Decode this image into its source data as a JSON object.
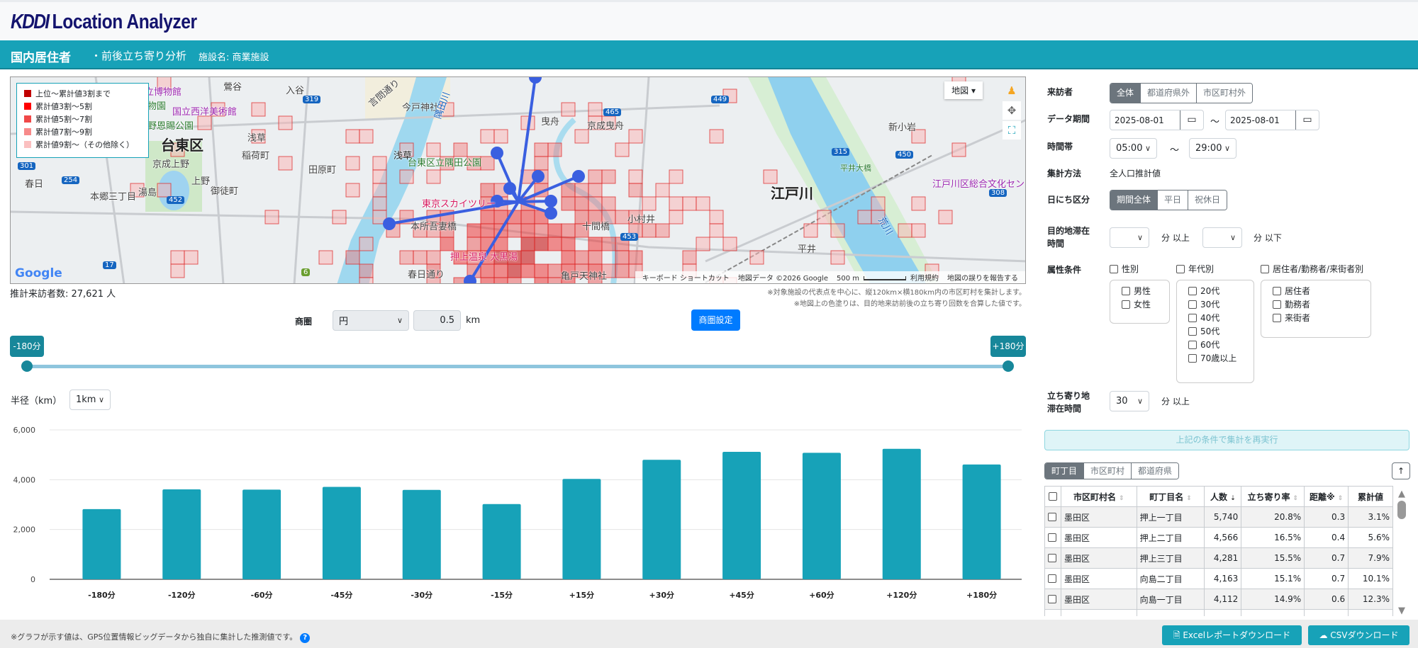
{
  "header": {
    "logo": "KDDI",
    "app_name": "Location Analyzer"
  },
  "titlebar": {
    "main": "国内居住者",
    "sub": "・前後立ち寄り分析",
    "facility": "施設名: 商業施設"
  },
  "map": {
    "legend": [
      {
        "label": "上位～累計値3割まで",
        "color": "#c00000"
      },
      {
        "label": "累計値3割～5割",
        "color": "#ff0000"
      },
      {
        "label": "累計値5割～7割",
        "color": "#f04848"
      },
      {
        "label": "累計値7割～9割",
        "color": "#f78a8a"
      },
      {
        "label": "累計値9割～（その他除く）",
        "color": "#fbc0c0"
      }
    ],
    "map_type": "地図",
    "labels": {
      "taito": "台東区",
      "edogawa": "江戸川",
      "museum": "東京国立博物館",
      "western": "国立西洋美術館",
      "ueno_park": "上野恩賜公園",
      "zoo": "動物園",
      "keisei_ueno": "京成上野",
      "inaricho": "稲荷町",
      "tawaramachi": "田原町",
      "ueno": "上野",
      "okachimachi": "御徒町",
      "yushima": "湯島",
      "hongo": "本郷三丁目",
      "kasuga": "春日",
      "asakusa": "浅草",
      "imado": "今戸神社",
      "hikifune": "曳舟",
      "keisei_hikifune": "京成曳舟",
      "sumida_park": "台東区立隅田公園",
      "skytree": "東京スカイツリー",
      "azumabashi": "本所吾妻橋",
      "daikokuyu": "押上温泉 大黒湯",
      "omurai": "小村井",
      "hirai": "平井",
      "shinkoiwa": "新小岩",
      "culture": "江戸川区総合文化センター",
      "hirai_bridge": "平井大橋",
      "arakawa": "荒川",
      "sumidagawa": "隅田川",
      "kameido": "亀戸天神社",
      "kasuga_dori": "春日通り",
      "iriya": "入谷",
      "uguisudani": "鶯谷",
      "kototoi": "言問通り",
      "jikken": "十間橋",
      "rt301": "301",
      "rt254": "254",
      "rt452": "452",
      "rt17": "17",
      "rt319": "319",
      "rt465": "465",
      "rt449": "449",
      "rt315": "315",
      "rt450": "450",
      "rt308": "308",
      "rt453": "453",
      "rt6": "6"
    },
    "google": "Google",
    "attribution": {
      "shortcuts": "キーボード ショートカット",
      "data": "地図データ ©2026 Google",
      "scale": "500 m",
      "terms": "利用規約",
      "report": "地図の誤りを報告する"
    }
  },
  "summary": {
    "visitors": "推計来訪者数: 27,621 人"
  },
  "notes": [
    "※対象施設の代表点を中心に、縦120km×横180km内の市区町村を集計します。",
    "※地図上の色塗りは、目的地来訪前後の立ち寄り回数を合算した値です。"
  ],
  "trade_area": {
    "label": "商圏",
    "shape": "円",
    "radius": "0.5",
    "unit": "km",
    "button": "商圏設定"
  },
  "slider": {
    "min_label": "-180分",
    "max_label": "+180分",
    "min": -180,
    "max": 180
  },
  "radius_select": {
    "label": "半径（km）",
    "value": "1km"
  },
  "chart_data": {
    "type": "bar",
    "categories": [
      "-180分",
      "-120分",
      "-60分",
      "-45分",
      "-30分",
      "-15分",
      "+15分",
      "+30分",
      "+45分",
      "+60分",
      "+120分",
      "+180分"
    ],
    "values": [
      2820,
      3610,
      3600,
      3710,
      3590,
      3020,
      4030,
      4800,
      5120,
      5080,
      5240,
      4610
    ],
    "yticks": [
      "0",
      "2,000",
      "4,000",
      "6,000"
    ],
    "ylim": [
      0,
      6000
    ],
    "color": "#17a2b8",
    "title": "",
    "xlabel": "",
    "ylabel": ""
  },
  "footer": {
    "note": "※グラフが示す値は、GPS位置情報ビッグデータから独自に集計した推測値です。",
    "help": "?",
    "excel": "Excelレポートダウンロード",
    "csv": "CSVダウンロード"
  },
  "filters": {
    "visitor": {
      "label": "来訪者",
      "options": [
        "全体",
        "都道府県外",
        "市区町村外"
      ]
    },
    "period": {
      "label": "データ期間",
      "from": "2025-08-01",
      "to": "2025-08-01",
      "sep": "～"
    },
    "time": {
      "label": "時間帯",
      "from": "05:00",
      "to": "29:00",
      "sep": "～"
    },
    "method": {
      "label": "集計方法",
      "value": "全人口推計値"
    },
    "day": {
      "label": "日にち区分",
      "options": [
        "期間全体",
        "平日",
        "祝休日"
      ]
    },
    "stay": {
      "label1": "目的地滞在",
      "label2": "時間",
      "from": "",
      "to": "",
      "u1": "分 以上",
      "u2": "分 以下"
    },
    "attr": {
      "label": "属性条件",
      "gender": {
        "label": "性別",
        "items": [
          "男性",
          "女性"
        ]
      },
      "age": {
        "label": "年代別",
        "items": [
          "20代",
          "30代",
          "40代",
          "50代",
          "60代",
          "70歳以上"
        ]
      },
      "type": {
        "label": "居住者/勤務者/来街者別",
        "items": [
          "居住者",
          "勤務者",
          "来街者"
        ]
      }
    },
    "stopover": {
      "label1": "立ち寄り地",
      "label2": "滞在時間",
      "value": "30",
      "unit": "分 以上"
    },
    "rerun": "上記の条件で集計を再実行"
  },
  "table": {
    "tabs": [
      "町丁目",
      "市区町村",
      "都道府県"
    ],
    "up": "↑",
    "columns": [
      "市区町村名",
      "町丁目名",
      "人数",
      "立ち寄り率",
      "距離※",
      "累計値"
    ],
    "rows": [
      [
        "墨田区",
        "押上一丁目",
        "5,740",
        "20.8%",
        "0.3",
        "3.1%"
      ],
      [
        "墨田区",
        "押上二丁目",
        "4,566",
        "16.5%",
        "0.4",
        "5.6%"
      ],
      [
        "墨田区",
        "押上三丁目",
        "4,281",
        "15.5%",
        "0.7",
        "7.9%"
      ],
      [
        "墨田区",
        "向島二丁目",
        "4,163",
        "15.1%",
        "0.7",
        "10.1%"
      ],
      [
        "墨田区",
        "向島一丁目",
        "4,112",
        "14.9%",
        "0.6",
        "12.3%"
      ]
    ]
  }
}
